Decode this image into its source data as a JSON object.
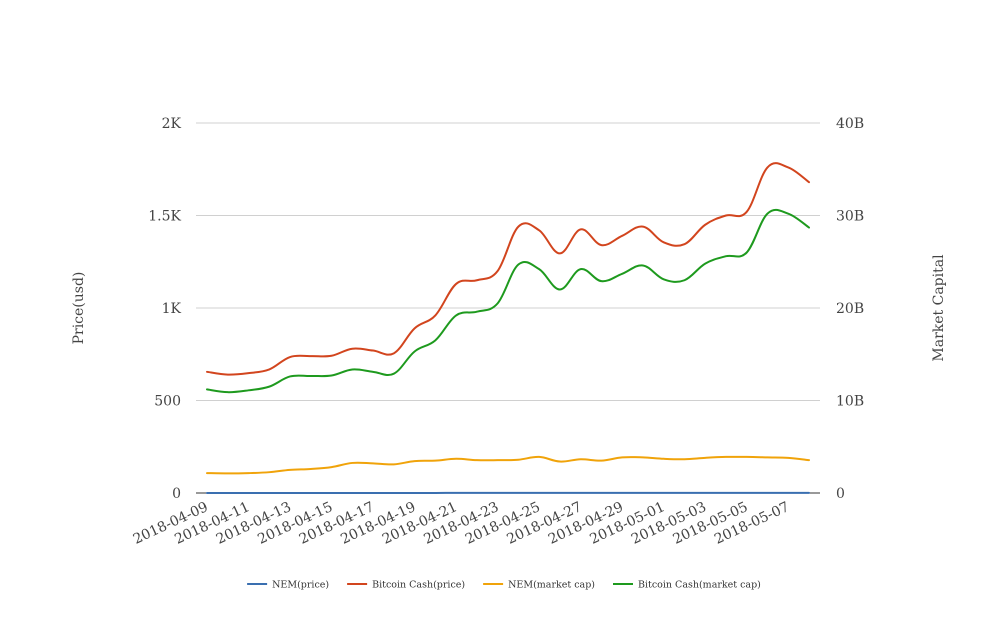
{
  "chart_data": {
    "type": "line",
    "title": "",
    "xlabel": "",
    "ylabel": "Price(usd)",
    "y2label": "Market Capital",
    "ylim": [
      0,
      2000
    ],
    "y2lim": [
      0,
      40000000000
    ],
    "yticks": [
      {
        "value": 0,
        "label": "0"
      },
      {
        "value": 500,
        "label": "500"
      },
      {
        "value": 1000,
        "label": "1K"
      },
      {
        "value": 1500,
        "label": "1.5K"
      },
      {
        "value": 2000,
        "label": "2K"
      }
    ],
    "y2ticks": [
      {
        "value": 0,
        "label": "0"
      },
      {
        "value": 10000000000,
        "label": "10B"
      },
      {
        "value": 20000000000,
        "label": "20B"
      },
      {
        "value": 30000000000,
        "label": "30B"
      },
      {
        "value": 40000000000,
        "label": "40B"
      }
    ],
    "xtick_labels": [
      "2018-04-09",
      "2018-04-11",
      "2018-04-13",
      "2018-04-15",
      "2018-04-17",
      "2018-04-19",
      "2018-04-21",
      "2018-04-23",
      "2018-04-25",
      "2018-04-27",
      "2018-04-29",
      "2018-05-01",
      "2018-05-03",
      "2018-05-05",
      "2018-05-07"
    ],
    "x": [
      "2018-04-09",
      "2018-04-10",
      "2018-04-11",
      "2018-04-12",
      "2018-04-13",
      "2018-04-14",
      "2018-04-15",
      "2018-04-16",
      "2018-04-17",
      "2018-04-18",
      "2018-04-19",
      "2018-04-20",
      "2018-04-21",
      "2018-04-22",
      "2018-04-23",
      "2018-04-24",
      "2018-04-25",
      "2018-04-26",
      "2018-04-27",
      "2018-04-28",
      "2018-04-29",
      "2018-04-30",
      "2018-05-01",
      "2018-05-02",
      "2018-05-03",
      "2018-05-04",
      "2018-05-05",
      "2018-05-06",
      "2018-05-07",
      "2018-05-08"
    ],
    "grid": true,
    "legend_position": "bottom",
    "series": [
      {
        "name": "NEM(price)",
        "axis": "left",
        "color": "#3a6fb0",
        "values": [
          0.26,
          0.25,
          0.25,
          0.26,
          0.28,
          0.29,
          0.3,
          0.33,
          0.32,
          0.31,
          0.34,
          0.35,
          0.37,
          0.36,
          0.36,
          0.37,
          0.39,
          0.36,
          0.37,
          0.36,
          0.38,
          0.38,
          0.37,
          0.37,
          0.38,
          0.39,
          0.39,
          0.39,
          0.38,
          0.36
        ]
      },
      {
        "name": "Bitcoin Cash(price)",
        "axis": "left",
        "color": "#d2451e",
        "values": [
          655,
          640,
          648,
          668,
          735,
          740,
          742,
          780,
          770,
          755,
          890,
          960,
          1130,
          1150,
          1200,
          1440,
          1420,
          1295,
          1425,
          1340,
          1390,
          1440,
          1355,
          1345,
          1450,
          1500,
          1520,
          1760,
          1760,
          1680
        ]
      },
      {
        "name": "NEM(market cap)",
        "axis": "right",
        "color": "#f0a30a",
        "values": [
          2150000000,
          2120000000,
          2150000000,
          2250000000,
          2500000000,
          2600000000,
          2800000000,
          3250000000,
          3200000000,
          3100000000,
          3450000000,
          3500000000,
          3700000000,
          3550000000,
          3550000000,
          3600000000,
          3900000000,
          3400000000,
          3650000000,
          3500000000,
          3850000000,
          3850000000,
          3700000000,
          3650000000,
          3800000000,
          3900000000,
          3900000000,
          3850000000,
          3800000000,
          3550000000
        ]
      },
      {
        "name": "Bitcoin Cash(market cap)",
        "axis": "right",
        "color": "#1e9a1e",
        "values": [
          11200000000,
          10900000000,
          11100000000,
          11500000000,
          12600000000,
          12650000000,
          12700000000,
          13350000000,
          13100000000,
          12900000000,
          15300000000,
          16500000000,
          19200000000,
          19600000000,
          20500000000,
          24700000000,
          24200000000,
          22000000000,
          24200000000,
          22900000000,
          23700000000,
          24600000000,
          23100000000,
          23000000000,
          24800000000,
          25600000000,
          26000000000,
          30200000000,
          30200000000,
          28700000000
        ]
      }
    ]
  }
}
